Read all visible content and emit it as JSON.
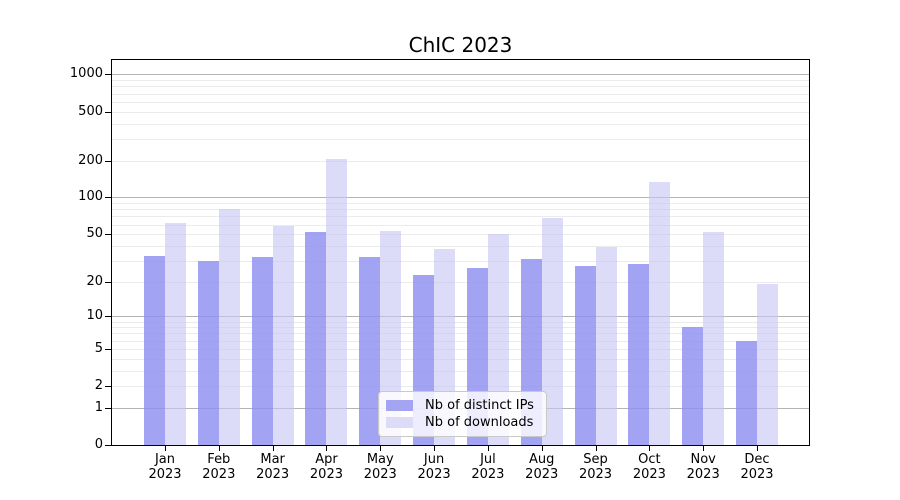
{
  "chart_data": {
    "type": "bar",
    "title": "ChIC 2023",
    "categories": [
      "Jan",
      "Feb",
      "Mar",
      "Apr",
      "May",
      "Jun",
      "Jul",
      "Aug",
      "Sep",
      "Oct",
      "Nov",
      "Dec"
    ],
    "year_label": "2023",
    "series": [
      {
        "name": "Nb of distinct IPs",
        "color": "#a4a4f2",
        "fill": "rgba(143,143,240,0.82)",
        "values": [
          33,
          30,
          32,
          52,
          32,
          23,
          26,
          31,
          27,
          28,
          8,
          6
        ]
      },
      {
        "name": "Nb of downloads",
        "color": "#dcdcf9",
        "fill": "rgba(199,199,244,0.62)",
        "values": [
          62,
          80,
          58,
          205,
          53,
          38,
          50,
          68,
          39,
          135,
          52,
          19
        ]
      }
    ],
    "xlabel": "",
    "ylabel": "",
    "yscale": "log1p",
    "yticks": [
      0,
      1,
      2,
      5,
      10,
      20,
      50,
      100,
      200,
      500,
      1000
    ],
    "ylim": [
      0,
      1360
    ],
    "grid": "horizontal",
    "legend_position": "lower center",
    "colors": {
      "grid_major": "#b4b4b4",
      "grid_minor": "#ebebeb",
      "spine": "#000000",
      "background": "#ffffff"
    }
  }
}
